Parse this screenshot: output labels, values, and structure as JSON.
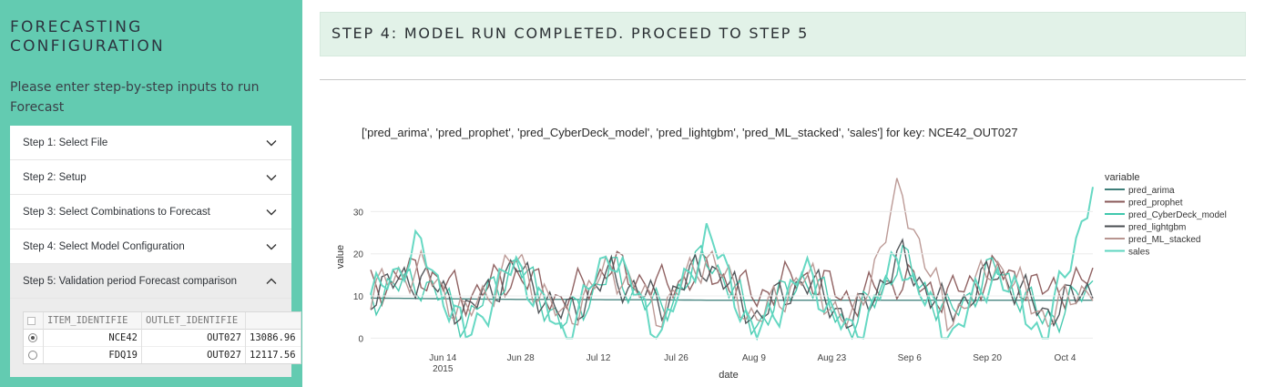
{
  "sidebar": {
    "title_line1": "FORECASTING",
    "title_line2": "CONFIGURATION",
    "subtitle": "Please enter step-by-step inputs to run Forecast",
    "steps": [
      {
        "label": "Step 1: Select File",
        "open": false
      },
      {
        "label": "Step 2: Setup",
        "open": false
      },
      {
        "label": "Step 3: Select Combinations to Forecast",
        "open": false
      },
      {
        "label": "Step 4: Select Model Configuration",
        "open": false
      },
      {
        "label": "Step 5: Validation period Forecast comparison",
        "open": true
      }
    ],
    "grid": {
      "columns": [
        "ITEM_IDENTIFIE",
        "OUTLET_IDENTIFIE",
        ""
      ],
      "rows": [
        {
          "selected": true,
          "item": "NCE42",
          "outlet": "OUT027",
          "value": "13086.96"
        },
        {
          "selected": false,
          "item": "FDQ19",
          "outlet": "OUT027",
          "value": "12117.56"
        }
      ]
    }
  },
  "main": {
    "banner": "STEP 4: MODEL RUN COMPLETED. PROCEED TO STEP 5"
  },
  "chart_data": {
    "type": "line",
    "title": "['pred_arima', 'pred_prophet', 'pred_CyberDeck_model', 'pred_lightgbm', 'pred_ML_stacked', 'sales'] for key: NCE42_OUT027",
    "xlabel": "date",
    "ylabel": "value",
    "x_start": "2015-06-01",
    "x_end": "2015-10-09",
    "x_ticks": [
      "Jun 14",
      "Jun 28",
      "Jul 12",
      "Jul 26",
      "Aug 9",
      "Aug 23",
      "Sep 6",
      "Sep 20",
      "Oct 4"
    ],
    "x_tick_sub": "2015",
    "y_ticks": [
      0,
      10,
      20,
      30
    ],
    "ylim": [
      -1,
      37
    ],
    "legend_title": "variable",
    "legend_position": "right",
    "series": [
      {
        "name": "pred_arima",
        "color": "#3f7f7a",
        "values": [
          9.5,
          9.4,
          9.3,
          9.2,
          9.2,
          9.1,
          9.1,
          9.0,
          9.0,
          9.0,
          9.0,
          9.0,
          9.0,
          9.0,
          9.0,
          9.0
        ]
      },
      {
        "name": "pred_prophet",
        "color": "#8a5a5a",
        "values": [
          12,
          16,
          10,
          15,
          9,
          17,
          12,
          16,
          10,
          15,
          9,
          14,
          10,
          16,
          11,
          14
        ]
      },
      {
        "name": "pred_CyberDeck_model",
        "color": "#40c8ad",
        "values": [
          10,
          14,
          4,
          18,
          3,
          16,
          6,
          20,
          3,
          15,
          2,
          19,
          5,
          17,
          4,
          12
        ]
      },
      {
        "name": "pred_lightgbm",
        "color": "#4a4e52",
        "values": [
          11,
          15,
          6,
          17,
          5,
          15,
          8,
          18,
          5,
          14,
          4,
          19,
          6,
          16,
          6,
          12
        ]
      },
      {
        "name": "pred_ML_stacked",
        "color": "#b89590",
        "values": [
          11,
          17,
          5,
          19,
          4,
          17,
          6,
          20,
          4,
          15,
          3,
          35,
          4,
          18,
          5,
          13
        ]
      },
      {
        "name": "sales",
        "color": "#5ed6c0",
        "values": [
          9,
          22,
          0,
          18,
          0,
          21,
          0,
          25,
          0,
          16,
          0,
          19,
          0,
          16,
          0,
          36
        ]
      }
    ]
  }
}
